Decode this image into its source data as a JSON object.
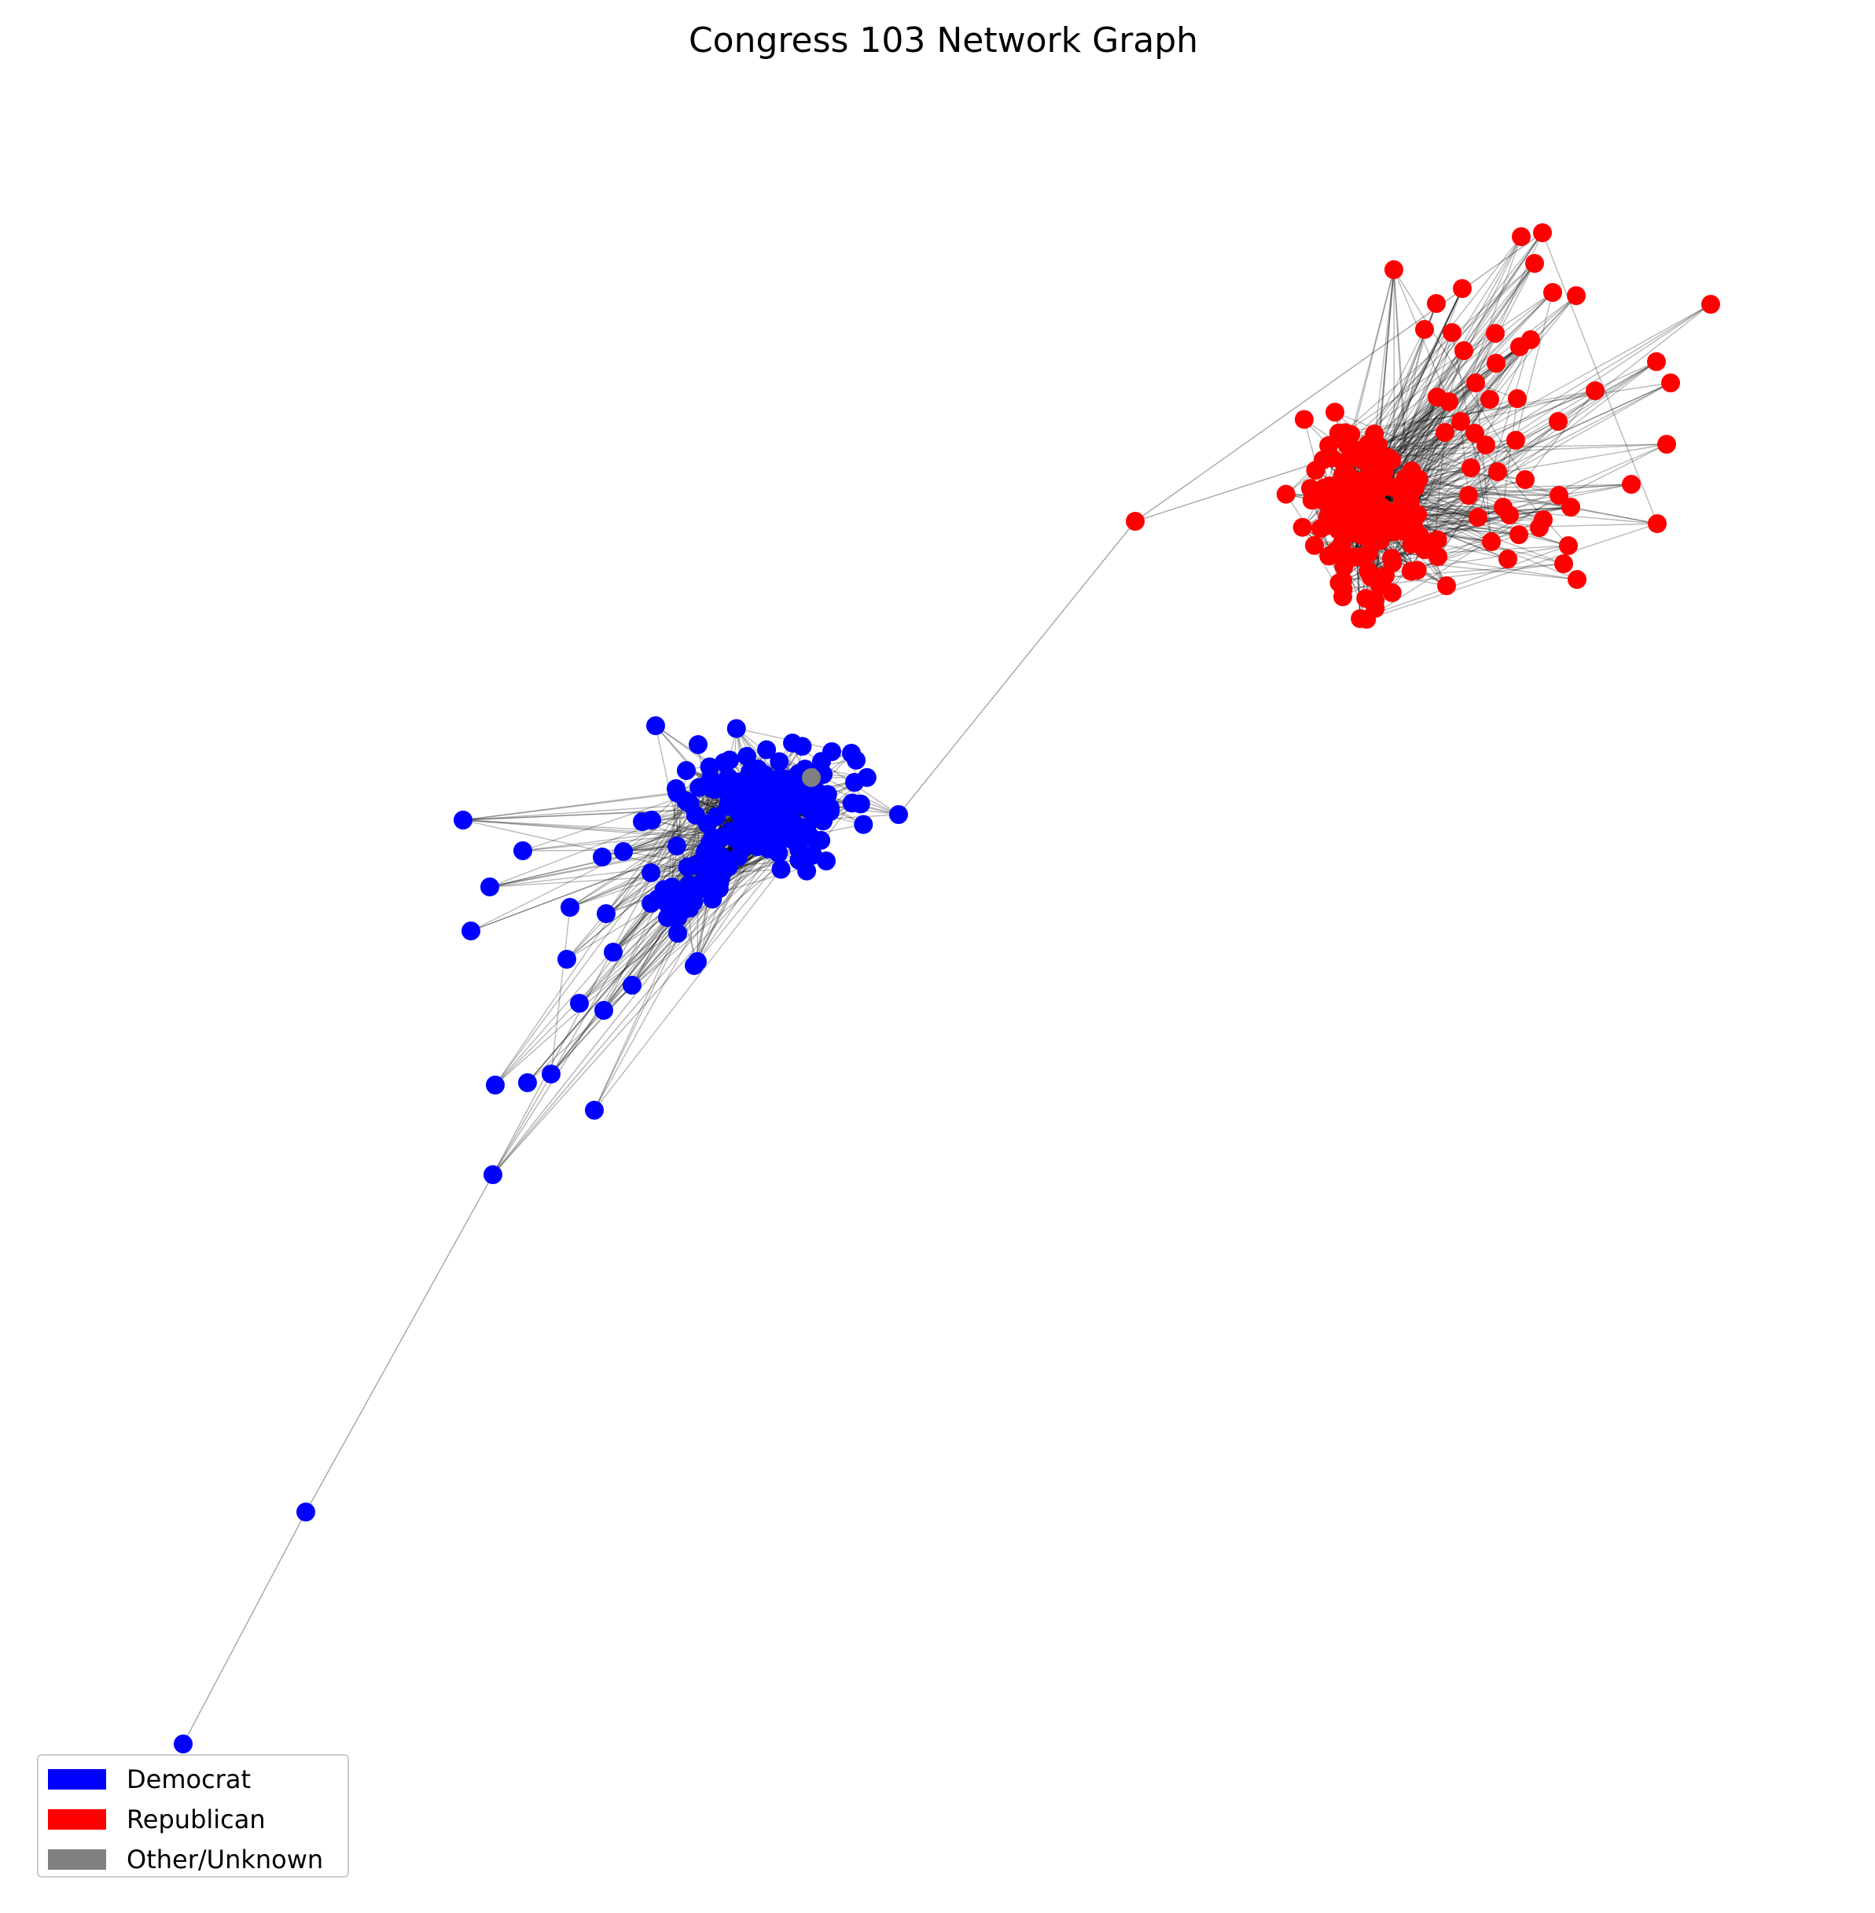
{
  "title": "Congress 103 Network Graph",
  "colors": {
    "democrat": "#0000ff",
    "republican": "#ff0000",
    "other": "#808080",
    "edge": "#000000"
  },
  "legend": {
    "items": [
      {
        "label": "Democrat",
        "color": "#0000ff"
      },
      {
        "label": "Republican",
        "color": "#ff0000"
      },
      {
        "label": "Other/Unknown",
        "color": "#808080"
      }
    ]
  }
}
